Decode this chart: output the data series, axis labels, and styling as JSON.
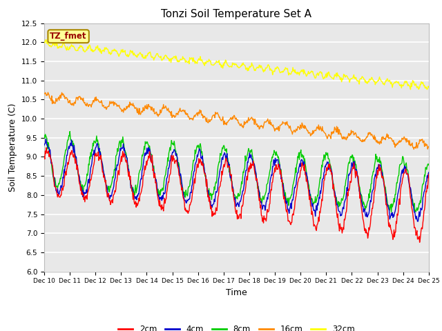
{
  "title": "Tonzi Soil Temperature Set A",
  "xlabel": "Time",
  "ylabel": "Soil Temperature (C)",
  "ylim": [
    6.0,
    12.5
  ],
  "xlim": [
    10,
    25
  ],
  "yticks": [
    6.0,
    6.5,
    7.0,
    7.5,
    8.0,
    8.5,
    9.0,
    9.5,
    10.0,
    10.5,
    11.0,
    11.5,
    12.0,
    12.5
  ],
  "plot_bg_color": "#e8e8e8",
  "fig_bg_color": "#ffffff",
  "line_colors": {
    "2cm": "#ff0000",
    "4cm": "#0000cc",
    "8cm": "#00cc00",
    "16cm": "#ff8800",
    "32cm": "#ffff00"
  },
  "legend_label": "TZ_fmet",
  "legend_bg": "#ffff99",
  "legend_text_color": "#990000",
  "legend_border_color": "#aa8800",
  "n_points": 720,
  "x_start": 10,
  "x_end": 25
}
